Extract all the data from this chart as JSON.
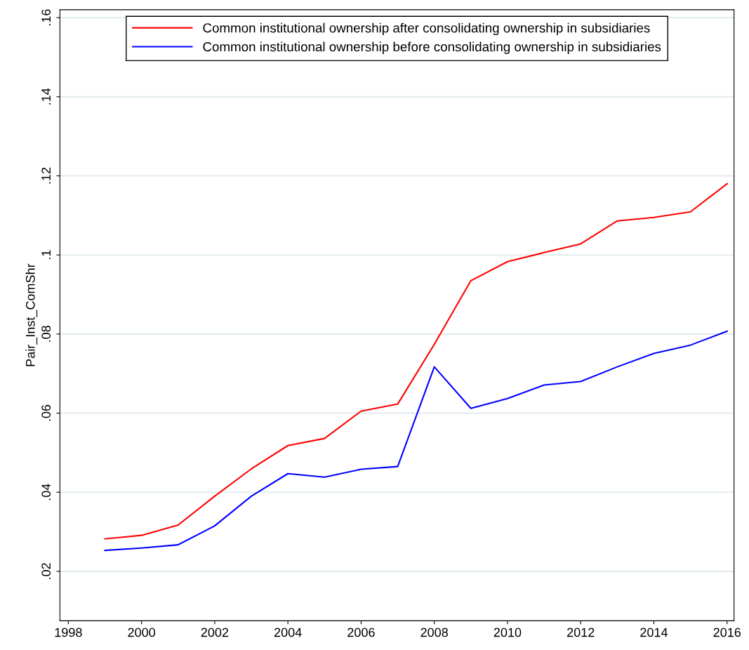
{
  "chart_data": {
    "type": "line",
    "ylabel": "Pair_Inst_ComShr",
    "x": [
      1999,
      2000,
      2001,
      2002,
      2003,
      2004,
      2005,
      2006,
      2007,
      2008,
      2009,
      2010,
      2011,
      2012,
      2013,
      2014,
      2015,
      2016
    ],
    "series": [
      {
        "name": "Common institutional ownership after consolidating ownership in subsidiaries",
        "color": "#ff0000",
        "values": [
          0.0282,
          0.0291,
          0.0317,
          0.039,
          0.0459,
          0.0518,
          0.0536,
          0.0605,
          0.0623,
          0.0774,
          0.0935,
          0.0983,
          0.1006,
          0.1028,
          0.1086,
          0.1095,
          0.1109,
          0.118
        ]
      },
      {
        "name": "Common institutional ownership before consolidating ownership in subsidiaries",
        "color": "#0000ff",
        "values": [
          0.0253,
          0.0259,
          0.0267,
          0.0315,
          0.039,
          0.0447,
          0.0438,
          0.0458,
          0.0465,
          0.0717,
          0.0612,
          0.0637,
          0.0671,
          0.068,
          0.0717,
          0.0751,
          0.0772,
          0.0807
        ]
      }
    ],
    "xlim": [
      1997.77,
      2016.19
    ],
    "xticks": [
      1998,
      2000,
      2002,
      2004,
      2006,
      2008,
      2010,
      2012,
      2014,
      2016
    ],
    "ylim": [
      0.0075,
      0.162
    ],
    "yticks": [
      {
        "value": 0.02,
        "label": ".02"
      },
      {
        "value": 0.04,
        "label": ".04"
      },
      {
        "value": 0.06,
        "label": ".06"
      },
      {
        "value": 0.08,
        "label": ".08"
      },
      {
        "value": 0.1,
        "label": ".1"
      },
      {
        "value": 0.12,
        "label": ".12"
      },
      {
        "value": 0.14,
        "label": ".14"
      },
      {
        "value": 0.16,
        "label": ".16"
      }
    ],
    "grid": "y",
    "legend": "top",
    "line_style": "solid",
    "marker": "none"
  }
}
